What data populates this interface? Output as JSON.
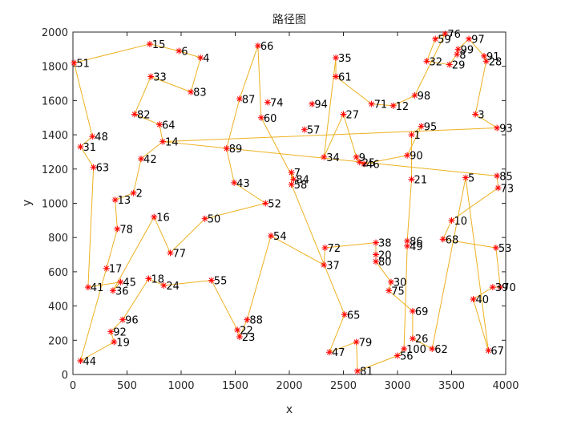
{
  "chart_data": {
    "type": "line",
    "title": "路径图",
    "xlabel": "x",
    "ylabel": "y",
    "xlim": [
      0,
      4000
    ],
    "ylim": [
      0,
      2000
    ],
    "xticks": [
      "0",
      "500",
      "1000",
      "1500",
      "2000",
      "2500",
      "3000",
      "3500",
      "4000"
    ],
    "yticks": [
      "0",
      "200",
      "400",
      "600",
      "800",
      "1000",
      "1200",
      "1400",
      "1600",
      "1800",
      "2000"
    ],
    "grid": false,
    "legend": "none",
    "line_color": "#EDB120",
    "marker_color": "#FF0000",
    "marker": "*",
    "cities": [
      {
        "id": "1",
        "x": 3130,
        "y": 1400
      },
      {
        "id": "2",
        "x": 560,
        "y": 1060
      },
      {
        "id": "3",
        "x": 3720,
        "y": 1520
      },
      {
        "id": "4",
        "x": 1180,
        "y": 1850
      },
      {
        "id": "5",
        "x": 3630,
        "y": 1150
      },
      {
        "id": "6",
        "x": 980,
        "y": 1890
      },
      {
        "id": "7",
        "x": 2020,
        "y": 1180
      },
      {
        "id": "8",
        "x": 3550,
        "y": 1870
      },
      {
        "id": "9",
        "x": 2620,
        "y": 1270
      },
      {
        "id": "10",
        "x": 3500,
        "y": 900
      },
      {
        "id": "12",
        "x": 2960,
        "y": 1570
      },
      {
        "id": "13",
        "x": 390,
        "y": 1020
      },
      {
        "id": "14",
        "x": 830,
        "y": 1360
      },
      {
        "id": "15",
        "x": 710,
        "y": 1930
      },
      {
        "id": "16",
        "x": 750,
        "y": 920
      },
      {
        "id": "17",
        "x": 310,
        "y": 620
      },
      {
        "id": "18",
        "x": 700,
        "y": 560
      },
      {
        "id": "19",
        "x": 380,
        "y": 190
      },
      {
        "id": "20",
        "x": 2800,
        "y": 700
      },
      {
        "id": "21",
        "x": 3130,
        "y": 1140
      },
      {
        "id": "22",
        "x": 1520,
        "y": 260
      },
      {
        "id": "23",
        "x": 1540,
        "y": 220
      },
      {
        "id": "24",
        "x": 840,
        "y": 520
      },
      {
        "id": "25",
        "x": 2650,
        "y": 1240
      },
      {
        "id": "26",
        "x": 3140,
        "y": 210
      },
      {
        "id": "27",
        "x": 2500,
        "y": 1520
      },
      {
        "id": "28",
        "x": 3820,
        "y": 1830
      },
      {
        "id": "29",
        "x": 3480,
        "y": 1810
      },
      {
        "id": "30",
        "x": 2940,
        "y": 540
      },
      {
        "id": "31",
        "x": 70,
        "y": 1330
      },
      {
        "id": "32",
        "x": 3270,
        "y": 1830
      },
      {
        "id": "33",
        "x": 720,
        "y": 1740
      },
      {
        "id": "34",
        "x": 2320,
        "y": 1270
      },
      {
        "id": "35",
        "x": 2430,
        "y": 1850
      },
      {
        "id": "36",
        "x": 370,
        "y": 490
      },
      {
        "id": "37",
        "x": 2320,
        "y": 640
      },
      {
        "id": "38",
        "x": 2800,
        "y": 770
      },
      {
        "id": "39",
        "x": 3880,
        "y": 510
      },
      {
        "id": "40",
        "x": 3700,
        "y": 440
      },
      {
        "id": "41",
        "x": 140,
        "y": 510
      },
      {
        "id": "42",
        "x": 630,
        "y": 1260
      },
      {
        "id": "43",
        "x": 1490,
        "y": 1120
      },
      {
        "id": "44",
        "x": 70,
        "y": 80
      },
      {
        "id": "45",
        "x": 440,
        "y": 540
      },
      {
        "id": "46",
        "x": 2690,
        "y": 1230
      },
      {
        "id": "47",
        "x": 2370,
        "y": 130
      },
      {
        "id": "48",
        "x": 180,
        "y": 1390
      },
      {
        "id": "49",
        "x": 3090,
        "y": 750
      },
      {
        "id": "50",
        "x": 1220,
        "y": 910
      },
      {
        "id": "51",
        "x": 10,
        "y": 1820
      },
      {
        "id": "52",
        "x": 1780,
        "y": 1000
      },
      {
        "id": "53",
        "x": 3910,
        "y": 740
      },
      {
        "id": "54",
        "x": 1830,
        "y": 810
      },
      {
        "id": "55",
        "x": 1280,
        "y": 550
      },
      {
        "id": "56",
        "x": 3000,
        "y": 110
      },
      {
        "id": "57",
        "x": 2140,
        "y": 1430
      },
      {
        "id": "58",
        "x": 2020,
        "y": 1110
      },
      {
        "id": "59",
        "x": 3350,
        "y": 1960
      },
      {
        "id": "60",
        "x": 1740,
        "y": 1500
      },
      {
        "id": "61",
        "x": 2430,
        "y": 1740
      },
      {
        "id": "62",
        "x": 3320,
        "y": 150
      },
      {
        "id": "63",
        "x": 190,
        "y": 1210
      },
      {
        "id": "64",
        "x": 800,
        "y": 1460
      },
      {
        "id": "65",
        "x": 2510,
        "y": 350
      },
      {
        "id": "66",
        "x": 1710,
        "y": 1920
      },
      {
        "id": "67",
        "x": 3840,
        "y": 140
      },
      {
        "id": "68",
        "x": 3420,
        "y": 790
      },
      {
        "id": "69",
        "x": 3140,
        "y": 370
      },
      {
        "id": "70",
        "x": 3950,
        "y": 510
      },
      {
        "id": "71",
        "x": 2760,
        "y": 1580
      },
      {
        "id": "72",
        "x": 2330,
        "y": 740
      },
      {
        "id": "73",
        "x": 3930,
        "y": 1090
      },
      {
        "id": "74",
        "x": 1800,
        "y": 1590
      },
      {
        "id": "75",
        "x": 2920,
        "y": 490
      },
      {
        "id": "76",
        "x": 3440,
        "y": 1990
      },
      {
        "id": "78",
        "x": 410,
        "y": 850
      },
      {
        "id": "77",
        "x": 900,
        "y": 710
      },
      {
        "id": "79",
        "x": 2620,
        "y": 190
      },
      {
        "id": "80",
        "x": 2800,
        "y": 660
      },
      {
        "id": "81",
        "x": 2630,
        "y": 20
      },
      {
        "id": "82",
        "x": 570,
        "y": 1520
      },
      {
        "id": "83",
        "x": 1090,
        "y": 1650
      },
      {
        "id": "84",
        "x": 2040,
        "y": 1140
      },
      {
        "id": "85",
        "x": 3920,
        "y": 1160
      },
      {
        "id": "86",
        "x": 3090,
        "y": 780
      },
      {
        "id": "87",
        "x": 1540,
        "y": 1610
      },
      {
        "id": "88",
        "x": 1610,
        "y": 320
      },
      {
        "id": "89",
        "x": 1420,
        "y": 1320
      },
      {
        "id": "90",
        "x": 3090,
        "y": 1280
      },
      {
        "id": "91",
        "x": 3800,
        "y": 1860
      },
      {
        "id": "92",
        "x": 350,
        "y": 250
      },
      {
        "id": "93",
        "x": 3920,
        "y": 1440
      },
      {
        "id": "94",
        "x": 2210,
        "y": 1580
      },
      {
        "id": "95",
        "x": 3220,
        "y": 1450
      },
      {
        "id": "96",
        "x": 460,
        "y": 320
      },
      {
        "id": "97",
        "x": 3660,
        "y": 1960
      },
      {
        "id": "98",
        "x": 3160,
        "y": 1630
      },
      {
        "id": "99",
        "x": 3560,
        "y": 1900
      },
      {
        "id": "100",
        "x": 3060,
        "y": 150
      }
    ],
    "route": [
      "51",
      "15",
      "6",
      "4",
      "83",
      "33",
      "82",
      "64",
      "14",
      "42",
      "2",
      "13",
      "78",
      "17",
      "44",
      "19",
      "92",
      "96",
      "18",
      "24",
      "55",
      "22",
      "23",
      "88",
      "54",
      "37",
      "72",
      "38",
      "20",
      "80",
      "30",
      "75",
      "69",
      "26",
      "62",
      "5",
      "67",
      "40",
      "39",
      "70",
      "53",
      "68",
      "10",
      "73",
      "85",
      "14_",
      "93",
      "3",
      "28",
      "91",
      "97",
      "99",
      "8",
      "29",
      "32",
      "59",
      "76",
      "98",
      "12",
      "71",
      "61",
      "35",
      "34",
      "27",
      "9",
      "25",
      "46",
      "90",
      "95",
      "1",
      "21",
      "86",
      "49",
      "100",
      "56",
      "81",
      "79",
      "47",
      "65",
      "58",
      "7",
      "84",
      "60",
      "66",
      "87",
      "89",
      "43",
      "52",
      "50",
      "77",
      "16",
      "36",
      "45",
      "41",
      "63",
      "31",
      "48",
      "51"
    ],
    "visible_city_ids": [
      "1",
      "2",
      "3",
      "4",
      "5",
      "6",
      "7",
      "8",
      "9",
      "10",
      "12",
      "13",
      "14",
      "15",
      "16",
      "17",
      "18",
      "19",
      "20",
      "21",
      "22",
      "23",
      "24",
      "25",
      "26",
      "27",
      "28",
      "29",
      "30",
      "31",
      "32",
      "33",
      "34",
      "35",
      "36",
      "37",
      "38",
      "39",
      "40",
      "41",
      "42",
      "43",
      "44",
      "45",
      "46",
      "47",
      "48",
      "49",
      "50",
      "51",
      "52",
      "53",
      "54",
      "55",
      "56",
      "57",
      "58",
      "59",
      "60",
      "61",
      "62",
      "63",
      "64",
      "65",
      "66",
      "67",
      "68",
      "69",
      "70",
      "71",
      "72",
      "73",
      "74",
      "75",
      "76",
      "77",
      "78",
      "79",
      "80",
      "81",
      "82",
      "83",
      "84",
      "85",
      "86",
      "87",
      "88",
      "89",
      "90",
      "91",
      "92",
      "93",
      "94",
      "95",
      "96",
      "97",
      "98",
      "99",
      "100"
    ]
  }
}
